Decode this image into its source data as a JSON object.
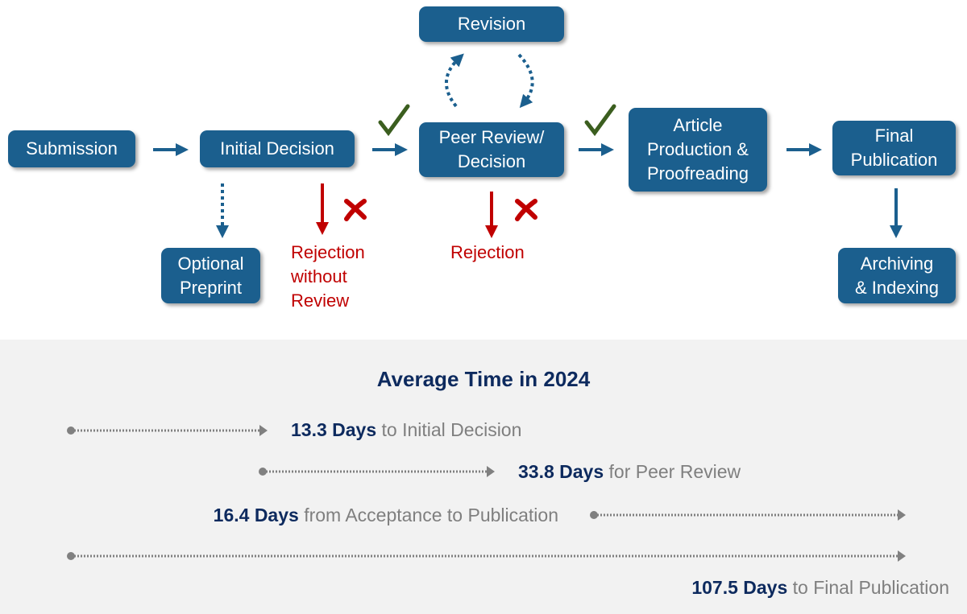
{
  "colors": {
    "box": "#1b5f8e",
    "reject": "#c00000",
    "check": "#3b5e1f",
    "timeline": "#808080",
    "title": "#0d2a5e"
  },
  "flow": {
    "submission": "Submission",
    "initial_decision": "Initial Decision",
    "revision": "Revision",
    "peer_review": "Peer Review/\nDecision",
    "article_production": "Article\nProduction &\nProofreading",
    "final_publication": "Final\nPublication",
    "optional_preprint": "Optional\nPreprint",
    "archiving": "Archiving\n& Indexing",
    "rejection_without_review": "Rejection\nwithout\nReview",
    "rejection": "Rejection"
  },
  "timing": {
    "title": "Average Time in 2024",
    "rows": [
      {
        "value": "13.3 Days",
        "label": " to Initial Decision"
      },
      {
        "value": "33.8 Days",
        "label": " for Peer Review"
      },
      {
        "value": "16.4 Days",
        "label": " from Acceptance to Publication"
      },
      {
        "value": "107.5 Days",
        "label": " to Final Publication"
      }
    ]
  }
}
